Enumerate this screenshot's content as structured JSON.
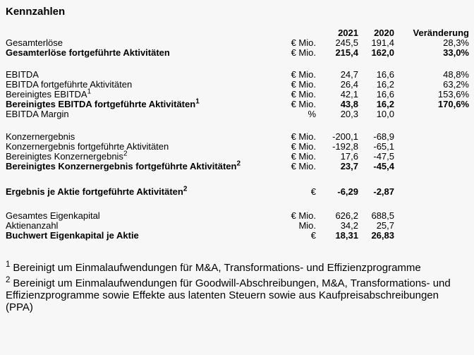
{
  "title": "Kennzahlen",
  "colors": {
    "background": "#f7f7f7",
    "text": "#000000"
  },
  "table": {
    "header": {
      "y2021": "2021",
      "y2020": "2020",
      "change": "Veränderung"
    },
    "sections": [
      {
        "rows": [
          {
            "label": "Gesamterlöse",
            "sup": "",
            "unit": "€ Mio.",
            "v2021": "245,5",
            "v2020": "191,4",
            "change": "28,3%",
            "bold": false
          },
          {
            "label": "Gesamterlöse fortgeführte Aktivitäten",
            "sup": "",
            "unit": "€ Mio.",
            "v2021": "215,4",
            "v2020": "162,0",
            "change": "33,0%",
            "bold": true
          }
        ]
      },
      {
        "rows": [
          {
            "label": "EBITDA",
            "sup": "",
            "unit": "€ Mio.",
            "v2021": "24,7",
            "v2020": "16,6",
            "change": "48,8%",
            "bold": false
          },
          {
            "label": "EBITDA fortgeführte Aktivitäten",
            "sup": "",
            "unit": "€ Mio.",
            "v2021": "26,4",
            "v2020": "16,2",
            "change": "63,2%",
            "bold": false
          },
          {
            "label": "Bereinigtes EBITDA",
            "sup": "1",
            "unit": "€ Mio.",
            "v2021": "42,1",
            "v2020": "16,6",
            "change": "153,6%",
            "bold": false
          },
          {
            "label": "Bereinigtes EBITDA fortgeführte Aktivitäten",
            "sup": "1",
            "unit": "€ Mio.",
            "v2021": "43,8",
            "v2020": "16,2",
            "change": "170,6%",
            "bold": true
          },
          {
            "label": "EBITDA Margin",
            "sup": "",
            "unit": "%",
            "v2021": "20,3",
            "v2020": "10,0",
            "change": "",
            "bold": false
          }
        ]
      },
      {
        "rows": [
          {
            "label": "Konzernergebnis",
            "sup": "",
            "unit": "€ Mio.",
            "v2021": "-200,1",
            "v2020": "-68,9",
            "change": "",
            "bold": false
          },
          {
            "label": "Konzernergebnis fortgeführte Aktivitäten",
            "sup": "",
            "unit": "€ Mio.",
            "v2021": "-192,8",
            "v2020": "-65,1",
            "change": "",
            "bold": false
          },
          {
            "label": "Bereinigtes Konzernergebnis",
            "sup": "2",
            "unit": "€ Mio.",
            "v2021": "17,6",
            "v2020": "-47,5",
            "change": "",
            "bold": false
          },
          {
            "label": "Bereinigtes Konzernergebnis fortgeführte Aktivitäten",
            "sup": "2",
            "unit": "€ Mio.",
            "v2021": "23,7",
            "v2020": "-45,4",
            "change": "",
            "bold": true
          }
        ]
      },
      {
        "rows": [
          {
            "label": "Ergebnis je Aktie fortgeführte Aktivitäten",
            "sup": "2",
            "unit": "€",
            "v2021": "-6,29",
            "v2020": "-2,87",
            "change": "",
            "bold": true
          }
        ]
      },
      {
        "rows": [
          {
            "label": "Gesamtes Eigenkapital",
            "sup": "",
            "unit": "€ Mio.",
            "v2021": "626,2",
            "v2020": "688,5",
            "change": "",
            "bold": false
          },
          {
            "label": "Aktienanzahl",
            "sup": "",
            "unit": "Mio.",
            "v2021": "34,2",
            "v2020": "25,7",
            "change": "",
            "bold": false
          },
          {
            "label": "Buchwert Eigenkapital je Aktie",
            "sup": "",
            "unit": "€",
            "v2021": "18,31",
            "v2020": "26,83",
            "change": "",
            "bold": true
          }
        ]
      }
    ]
  },
  "footnotes": [
    {
      "marker": "1",
      "text": "Bereinigt um Einmalaufwendungen für M&A, Transformations- und Effizienzprogramme"
    },
    {
      "marker": "2",
      "text": "Bereinigt um Einmalaufwendungen für Goodwill-Abschreibungen, M&A, Transformations- und Effizienzprogramme sowie Effekte aus latenten Steuern sowie aus Kaufpreisabschreibungen (PPA)"
    }
  ]
}
